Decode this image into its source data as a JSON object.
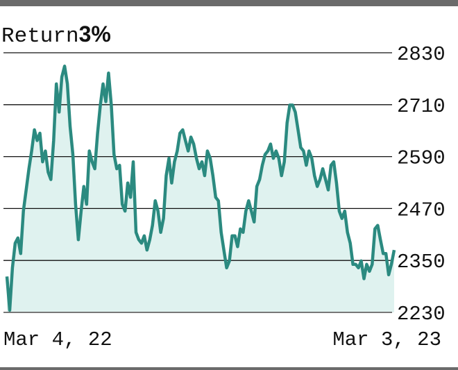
{
  "chart_data": {
    "type": "area",
    "title": "Return",
    "title_value": "3%",
    "categories": [
      "Mar 4, 22",
      null,
      null,
      null,
      null,
      null,
      null,
      null,
      null,
      null,
      null,
      null,
      null,
      null,
      null,
      null,
      null,
      null,
      null,
      null,
      null,
      null,
      null,
      null,
      null,
      null,
      null,
      null,
      null,
      null,
      null,
      null,
      null,
      null,
      null,
      null,
      null,
      null,
      null,
      null,
      null,
      null,
      null,
      null,
      null,
      null,
      null,
      null,
      null,
      null,
      null,
      null,
      null,
      null,
      null,
      null,
      null,
      null,
      null,
      null,
      null,
      null,
      null,
      null,
      null,
      null,
      null,
      null,
      null,
      null,
      null,
      null,
      null,
      null,
      null,
      null,
      null,
      null,
      null,
      null,
      null,
      null,
      null,
      null,
      null,
      null,
      null,
      null,
      null,
      null,
      null,
      null,
      null,
      null,
      null,
      null,
      null,
      null,
      null,
      null,
      null,
      null,
      null,
      null,
      null,
      null,
      null,
      null,
      null,
      null,
      null,
      null,
      null,
      null,
      null,
      null,
      null,
      null,
      null,
      null,
      null,
      null,
      null,
      null,
      null,
      null,
      null,
      null,
      null,
      null,
      null,
      null,
      null,
      null,
      null,
      null,
      null,
      null,
      null,
      null,
      null,
      "Mar 3, 23"
    ],
    "values": [
      2313,
      2235,
      2333,
      2390,
      2402,
      2366,
      2464,
      2513,
      2562,
      2603,
      2652,
      2627,
      2644,
      2578,
      2603,
      2554,
      2537,
      2627,
      2758,
      2693,
      2774,
      2799,
      2758,
      2660,
      2595,
      2480,
      2398,
      2464,
      2521,
      2480,
      2603,
      2578,
      2562,
      2644,
      2709,
      2758,
      2717,
      2783,
      2709,
      2595,
      2562,
      2570,
      2480,
      2464,
      2529,
      2496,
      2578,
      2415,
      2398,
      2390,
      2407,
      2374,
      2398,
      2431,
      2488,
      2464,
      2415,
      2447,
      2546,
      2586,
      2529,
      2578,
      2603,
      2644,
      2652,
      2627,
      2603,
      2635,
      2619,
      2586,
      2562,
      2578,
      2546,
      2603,
      2586,
      2546,
      2496,
      2488,
      2415,
      2374,
      2333,
      2349,
      2407,
      2407,
      2382,
      2423,
      2415,
      2464,
      2488,
      2464,
      2439,
      2521,
      2537,
      2570,
      2595,
      2603,
      2619,
      2586,
      2603,
      2586,
      2546,
      2578,
      2668,
      2709,
      2709,
      2693,
      2652,
      2611,
      2603,
      2570,
      2603,
      2586,
      2546,
      2521,
      2537,
      2562,
      2537,
      2513,
      2570,
      2578,
      2529,
      2464,
      2447,
      2464,
      2415,
      2390,
      2341,
      2341,
      2333,
      2349,
      2308,
      2341,
      2325,
      2341,
      2423,
      2431,
      2398,
      2366,
      2366,
      2317,
      2341,
      2374
    ],
    "color": "#2b8a80",
    "fill": "#dff2ef",
    "ylim": [
      2230,
      2830
    ],
    "yticks": [
      2230,
      2350,
      2470,
      2590,
      2710,
      2830
    ],
    "grid": true
  }
}
